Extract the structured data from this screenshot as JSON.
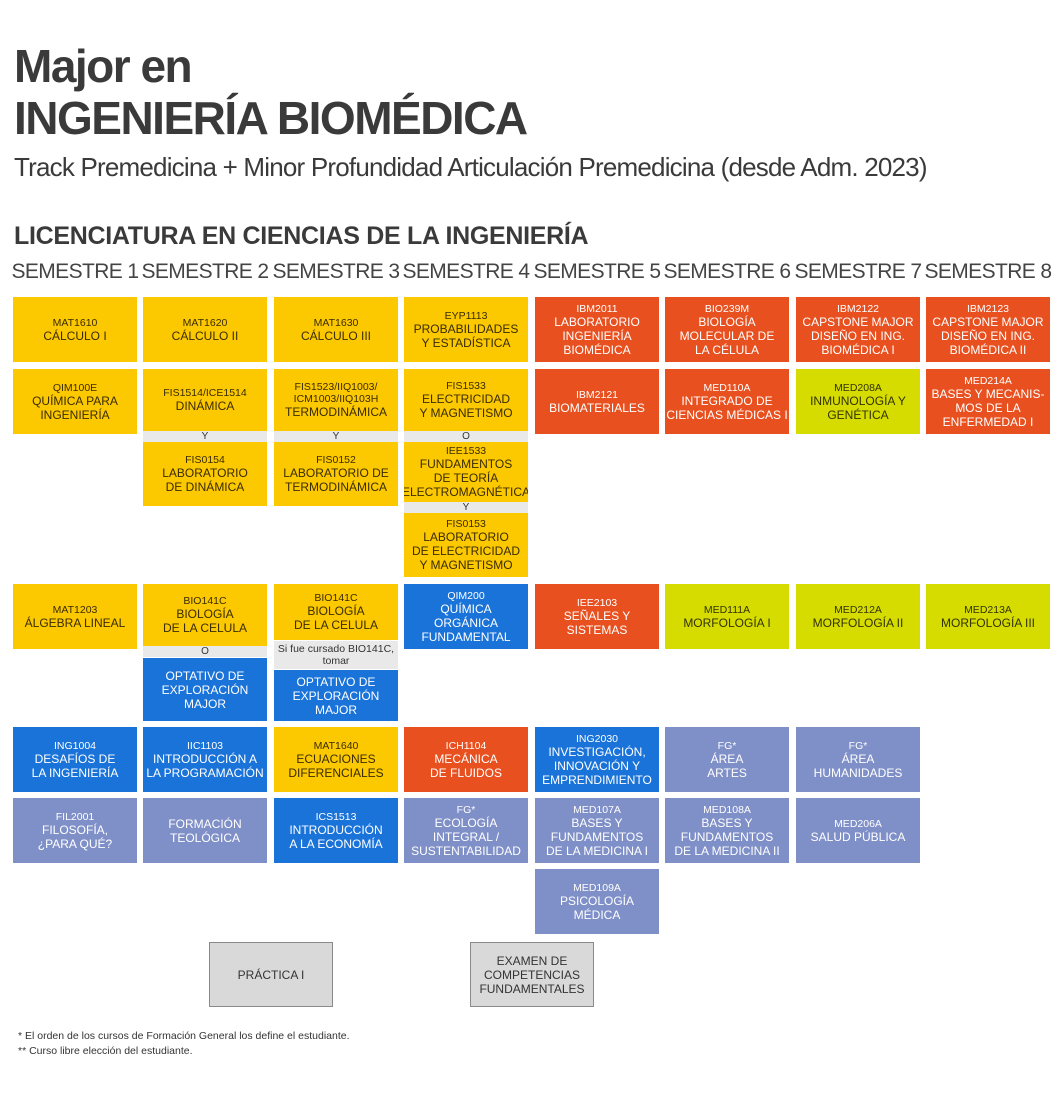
{
  "header": {
    "title_line1": "Major en",
    "title_line2": "INGENIERÍA BIOMÉDICA",
    "subtitle": "Track Premedicina + Minor Profundidad Articulación Premedicina (desde Adm. 2023)",
    "section": "LICENCIATURA EN CIENCIAS DE LA INGENIERÍA"
  },
  "semesters": [
    "SEMESTRE 1",
    "SEMESTRE 2",
    "SEMESTRE 3",
    "SEMESTRE 4",
    "SEMESTRE 5",
    "SEMESTRE 6",
    "SEMESTRE 7",
    "SEMESTRE 8"
  ],
  "colors": {
    "math_science": "#fcc800",
    "major": "#e8501f",
    "premed": "#d6dc00",
    "engineering": "#1a73d9",
    "general": "#7f8fc7",
    "other": "#d9d9d9"
  },
  "courses": [
    {
      "code": "MAT1610",
      "name": "CÁLCULO I"
    },
    {
      "code": "MAT1620",
      "name": "CÁLCULO II"
    },
    {
      "code": "MAT1630",
      "name": "CÁLCULO III"
    },
    {
      "code": "EYP1113",
      "name": "PROBABILIDADES\nY ESTADÍSTICA"
    },
    {
      "code": "IBM2011",
      "name": "LABORATORIO\nINGENIERÍA\nBIOMÉDICA"
    },
    {
      "code": "BIO239M",
      "name": "BIOLOGÍA\nMOLECULAR DE\nLA CÉLULA"
    },
    {
      "code": "IBM2122",
      "name": "CAPSTONE MAJOR\nDISEÑO EN ING.\nBIOMÉDICA I"
    },
    {
      "code": "IBM2123",
      "name": "CAPSTONE MAJOR\nDISEÑO EN ING.\nBIOMÉDICA II"
    },
    {
      "code": "QIM100E",
      "name": "QUÍMICA PARA\nINGENIERÍA"
    },
    {
      "code": "FIS1514/ICE1514",
      "name": "DINÁMICA"
    },
    {
      "code": "FIS1523/IIQ1003/\nICM1003/IIQ103H",
      "name": "TERMODINÁMICA"
    },
    {
      "code": "FIS1533",
      "name": "ELECTRICIDAD\nY MAGNETISMO"
    },
    {
      "code": "IBM2121",
      "name": "BIOMATERIALES"
    },
    {
      "code": "MED110A",
      "name": "INTEGRADO DE\nCIENCIAS MÉDICAS I"
    },
    {
      "code": "MED208A",
      "name": "INMUNOLOGÍA Y\nGENÉTICA"
    },
    {
      "code": "MED214A",
      "name": "BASES Y MECANIS-\nMOS DE LA\nENFERMEDAD I"
    },
    {
      "code": "FIS0154",
      "name": "LABORATORIO\nDE DINÁMICA"
    },
    {
      "code": "FIS0152",
      "name": "LABORATORIO DE\nTERMODINÁMICA"
    },
    {
      "code": "IEE1533",
      "name": "FUNDAMENTOS\nDE TEORÍA\nELECTROMAGNÉTICA"
    },
    {
      "code": "FIS0153",
      "name": "LABORATORIO\nDE ELECTRICIDAD\nY MAGNETISMO"
    },
    {
      "code": "MAT1203",
      "name": "ÁLGEBRA LINEAL"
    },
    {
      "code": "BIO141C",
      "name": "BIOLOGÍA\nDE LA CELULA"
    },
    {
      "code": "BIO141C",
      "name": "BIOLOGÍA\nDE LA CELULA"
    },
    {
      "code": "QIM200",
      "name": "QUÍMICA\nORGÁNICA\nFUNDAMENTAL"
    },
    {
      "code": "IEE2103",
      "name": "SEÑALES Y\nSISTEMAS"
    },
    {
      "code": "MED111A",
      "name": "MORFOLOGÍA I"
    },
    {
      "code": "MED212A",
      "name": "MORFOLOGÍA II"
    },
    {
      "code": "MED213A",
      "name": "MORFOLOGÍA III"
    },
    {
      "code": "",
      "name": "OPTATIVO DE\nEXPLORACIÓN\nMAJOR"
    },
    {
      "code": "",
      "name": "OPTATIVO DE\nEXPLORACIÓN\nMAJOR"
    },
    {
      "code": "ING1004",
      "name": "DESAFÍOS DE\nLA INGENIERÍA"
    },
    {
      "code": "IIC1103",
      "name": "INTRODUCCIÓN A\nLA PROGRAMACIÓN"
    },
    {
      "code": "MAT1640",
      "name": "ECUACIONES\nDIFERENCIALES"
    },
    {
      "code": "ICH1104",
      "name": "MECÁNICA\nDE FLUIDOS"
    },
    {
      "code": "ING2030",
      "name": "INVESTIGACIÓN,\nINNOVACIÓN Y\nEMPRENDIMIENTO"
    },
    {
      "code": "FG*",
      "name": "ÁREA\nARTES"
    },
    {
      "code": "FG*",
      "name": "ÁREA\nHUMANIDADES"
    },
    {
      "code": "FIL2001",
      "name": "FILOSOFÍA,\n¿PARA QUÉ?"
    },
    {
      "code": "",
      "name": "FORMACIÓN\nTEOLÓGICA"
    },
    {
      "code": "ICS1513",
      "name": "INTRODUCCIÓN\nA LA ECONOMÍA"
    },
    {
      "code": "FG*",
      "name": "ECOLOGÍA INTEGRAL /\nSUSTENTABILIDAD"
    },
    {
      "code": "MED107A",
      "name": "BASES Y FUNDAMENTOS\nDE LA MEDICINA I"
    },
    {
      "code": "MED108A",
      "name": "BASES Y FUNDAMENTOS\nDE LA MEDICINA II"
    },
    {
      "code": "MED206A",
      "name": "SALUD PÚBLICA"
    },
    {
      "code": "MED109A",
      "name": "PSICOLOGÍA\nMÉDICA"
    },
    {
      "code": "",
      "name": "PRÁCTICA I"
    },
    {
      "code": "",
      "name": "EXAMEN DE\nCOMPETENCIAS\nFUNDAMENTALES"
    }
  ],
  "connectors": [
    "Y",
    "Y",
    "O",
    "Y",
    "O"
  ],
  "note": "Si fue cursado BIO141C,\ntomar",
  "footnotes": [
    "* El orden de los cursos de Formación General los define el estudiante.",
    "** Curso libre elección del estudiante."
  ]
}
